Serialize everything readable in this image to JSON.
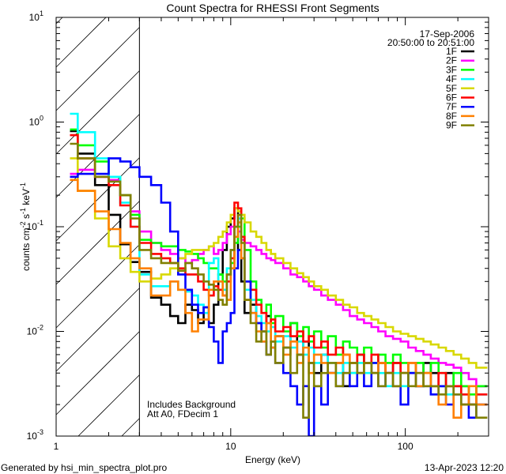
{
  "footer": {
    "generated_by": "Generated by hsi_min_spectra_plot.pro",
    "timestamp": "13-Apr-2023 12:20"
  },
  "chart_data": {
    "type": "line",
    "title": "Count Spectra for RHESSI Front Segments",
    "xlabel": "Energy (keV)",
    "ylabel_parts": [
      {
        "text": "counts cm",
        "sup": "-2"
      },
      {
        "text": " s",
        "sup": "-1"
      },
      {
        "text": " keV",
        "sup": "-1"
      }
    ],
    "xscale": "log",
    "yscale": "log",
    "xlim": [
      1,
      300
    ],
    "ylim": [
      0.001,
      10
    ],
    "x_tick_labels": [
      {
        "value": 1,
        "label": "1"
      },
      {
        "value": 10,
        "label": "10"
      },
      {
        "value": 100,
        "label": "100"
      }
    ],
    "y_tick_labels": [
      {
        "value": 0.001,
        "base": "10",
        "exp": "-3"
      },
      {
        "value": 0.01,
        "base": "10",
        "exp": "-2"
      },
      {
        "value": 0.1,
        "base": "10",
        "exp": "-1"
      },
      {
        "value": 1,
        "base": "10",
        "exp": "0"
      },
      {
        "value": 10,
        "base": "10",
        "exp": "1"
      }
    ],
    "grid": false,
    "shaded_region_kev": [
      1,
      3
    ],
    "date": "17-Sep-2006",
    "time_range": "20:50:00 to 20:51:00",
    "annotations": [
      "Includes Background",
      "Att A0, FDecim 1"
    ],
    "legend_position": "top-right",
    "bin_lower_edges_kev": [
      1.2,
      1.33,
      1.67,
      2,
      2.33,
      2.67,
      3,
      3.5,
      4,
      4.5,
      5,
      5.5,
      6,
      6.5,
      7,
      7.5,
      8,
      8.5,
      9,
      9.5,
      10,
      10.5,
      11,
      11.5,
      12,
      13,
      14,
      15,
      16,
      17,
      18,
      20,
      22,
      24,
      26,
      28,
      30,
      33,
      36,
      40,
      44,
      48,
      53,
      58,
      64,
      70,
      77,
      85,
      94,
      104,
      115,
      127,
      140,
      155,
      171,
      189,
      209,
      231,
      255
    ],
    "bin_upper_edge_kev": 295,
    "series": [
      {
        "name": "1F",
        "color": "#000000",
        "values": [
          0.82,
          0.5,
          0.25,
          0.13,
          0.068,
          0.046,
          0.037,
          0.021,
          0.018,
          0.014,
          0.012,
          0.018,
          0.016,
          0.012,
          0.017,
          0.012,
          0.018,
          0.035,
          0.06,
          0.1,
          0.12,
          0.15,
          0.06,
          0.03,
          0.015,
          0.018,
          0.012,
          0.01,
          0.014,
          0.008,
          0.009,
          0.007,
          0.012,
          0.006,
          0.008,
          0.005,
          0.004,
          0.006,
          0.004,
          0.005,
          0.003,
          0.004,
          0.006,
          0.005,
          0.004,
          0.005,
          0.004,
          0.005,
          0.004,
          0.004,
          0.003,
          0.005,
          0.004,
          0.003,
          0.004,
          0.003,
          0.003,
          0.002,
          0.003
        ]
      },
      {
        "name": "2F",
        "color": "#ff00ff",
        "values": [
          0.32,
          0.35,
          0.3,
          0.28,
          0.2,
          0.14,
          0.09,
          0.07,
          0.06,
          0.055,
          0.05,
          0.045,
          0.048,
          0.055,
          0.06,
          0.065,
          0.055,
          0.06,
          0.07,
          0.085,
          0.1,
          0.1,
          0.09,
          0.075,
          0.07,
          0.065,
          0.06,
          0.055,
          0.05,
          0.048,
          0.045,
          0.04,
          0.035,
          0.033,
          0.03,
          0.027,
          0.025,
          0.022,
          0.02,
          0.018,
          0.016,
          0.014,
          0.013,
          0.012,
          0.011,
          0.01,
          0.009,
          0.0085,
          0.008,
          0.007,
          0.0065,
          0.006,
          0.0055,
          0.005,
          0.0048,
          0.0045,
          0.004,
          0.0035,
          0.003
        ]
      },
      {
        "name": "3F",
        "color": "#00ff00",
        "values": [
          0.85,
          0.6,
          0.42,
          0.3,
          0.2,
          0.13,
          0.075,
          0.07,
          0.065,
          0.065,
          0.06,
          0.058,
          0.055,
          0.05,
          0.045,
          0.04,
          0.04,
          0.035,
          0.03,
          0.035,
          0.045,
          0.07,
          0.1,
          0.12,
          0.06,
          0.03,
          0.02,
          0.015,
          0.018,
          0.012,
          0.014,
          0.01,
          0.012,
          0.009,
          0.011,
          0.008,
          0.01,
          0.007,
          0.009,
          0.006,
          0.008,
          0.007,
          0.006,
          0.007,
          0.005,
          0.006,
          0.005,
          0.006,
          0.005,
          0.004,
          0.005,
          0.004,
          0.005,
          0.004,
          0.003,
          0.004,
          0.003,
          0.0025,
          0.003
        ]
      },
      {
        "name": "4F",
        "color": "#00ffff",
        "values": [
          1.2,
          0.8,
          0.45,
          0.3,
          0.17,
          0.1,
          0.035,
          0.027,
          0.027,
          0.03,
          0.025,
          0.024,
          0.022,
          0.018,
          0.015,
          0.045,
          0.05,
          0.03,
          0.025,
          0.04,
          0.06,
          0.1,
          0.12,
          0.05,
          0.025,
          0.02,
          0.014,
          0.012,
          0.01,
          0.011,
          0.008,
          0.009,
          0.007,
          0.008,
          0.006,
          0.007,
          0.005,
          0.006,
          0.005,
          0.004,
          0.005,
          0.004,
          0.005,
          0.004,
          0.005,
          0.004,
          0.003,
          0.004,
          0.003,
          0.004,
          0.003,
          0.004,
          0.003,
          0.003,
          0.0025,
          0.003,
          0.0025,
          0.002,
          0.0025
        ]
      },
      {
        "name": "5F",
        "color": "#d8d800",
        "values": [
          0.45,
          0.22,
          0.12,
          0.065,
          0.05,
          0.037,
          0.03,
          0.032,
          0.035,
          0.04,
          0.05,
          0.055,
          0.06,
          0.06,
          0.06,
          0.065,
          0.07,
          0.08,
          0.09,
          0.11,
          0.13,
          0.15,
          0.14,
          0.13,
          0.11,
          0.09,
          0.08,
          0.07,
          0.06,
          0.055,
          0.05,
          0.045,
          0.04,
          0.036,
          0.033,
          0.03,
          0.027,
          0.025,
          0.022,
          0.02,
          0.018,
          0.017,
          0.015,
          0.014,
          0.013,
          0.012,
          0.011,
          0.01,
          0.0095,
          0.009,
          0.0085,
          0.008,
          0.0075,
          0.007,
          0.0065,
          0.006,
          0.0055,
          0.005,
          0.0045
        ]
      },
      {
        "name": "6F",
        "color": "#ff0000",
        "values": [
          0.75,
          0.45,
          0.3,
          0.25,
          0.16,
          0.1,
          0.07,
          0.055,
          0.05,
          0.045,
          0.04,
          0.035,
          0.035,
          0.03,
          0.025,
          0.022,
          0.027,
          0.025,
          0.022,
          0.03,
          0.05,
          0.17,
          0.15,
          0.08,
          0.03,
          0.025,
          0.018,
          0.015,
          0.012,
          0.013,
          0.01,
          0.011,
          0.009,
          0.01,
          0.008,
          0.009,
          0.007,
          0.008,
          0.006,
          0.007,
          0.006,
          0.005,
          0.006,
          0.005,
          0.006,
          0.005,
          0.004,
          0.005,
          0.004,
          0.005,
          0.004,
          0.004,
          0.003,
          0.004,
          0.003,
          0.003,
          0.0025,
          0.002,
          0.0025
        ]
      },
      {
        "name": "7F",
        "color": "#0000ff",
        "values": [
          0.3,
          0.32,
          0.32,
          0.45,
          0.42,
          0.37,
          0.3,
          0.25,
          0.17,
          0.09,
          0.035,
          0.025,
          0.018,
          0.015,
          0.017,
          0.011,
          0.008,
          0.005,
          0.01,
          0.012,
          0.015,
          0.04,
          0.06,
          0.05,
          0.03,
          0.015,
          0.012,
          0.008,
          0.006,
          0.007,
          0.005,
          0.004,
          0.003,
          0.002,
          0.003,
          0.0008,
          0.003,
          0.002,
          0.004,
          0.003,
          0.004,
          0.003,
          0.004,
          0.003,
          0.005,
          0.003,
          0.004,
          0.003,
          0.002,
          0.004,
          0.003,
          0.003,
          0.0025,
          0.003,
          0.002,
          0.0025,
          0.002,
          0.0015,
          0.002
        ]
      },
      {
        "name": "8F",
        "color": "#ff8000",
        "values": [
          0.28,
          0.22,
          0.14,
          0.095,
          0.07,
          0.05,
          0.04,
          0.022,
          0.022,
          0.03,
          0.025,
          0.015,
          0.01,
          0.013,
          0.013,
          0.025,
          0.03,
          0.03,
          0.022,
          0.02,
          0.04,
          0.08,
          0.11,
          0.05,
          0.02,
          0.015,
          0.01,
          0.008,
          0.012,
          0.007,
          0.009,
          0.006,
          0.008,
          0.005,
          0.007,
          0.004,
          0.006,
          0.005,
          0.004,
          0.005,
          0.006,
          0.005,
          0.004,
          0.005,
          0.004,
          0.005,
          0.004,
          0.003,
          0.004,
          0.005,
          0.003,
          0.004,
          0.003,
          0.002,
          0.003,
          0.0015,
          0.002,
          0.003,
          0.002
        ]
      },
      {
        "name": "9F",
        "color": "#808000",
        "values": [
          0.62,
          0.45,
          0.3,
          0.27,
          0.2,
          0.12,
          0.06,
          0.05,
          0.045,
          0.045,
          0.038,
          0.045,
          0.04,
          0.035,
          0.03,
          0.028,
          0.025,
          0.02,
          0.018,
          0.035,
          0.06,
          0.1,
          0.13,
          0.07,
          0.02,
          0.012,
          0.008,
          0.01,
          0.006,
          0.008,
          0.005,
          0.007,
          0.004,
          0.006,
          0.0015,
          0.005,
          0.003,
          0.004,
          0.005,
          0.003,
          0.004,
          0.005,
          0.004,
          0.005,
          0.004,
          0.003,
          0.004,
          0.003,
          0.004,
          0.003,
          0.004,
          0.003,
          0.003,
          0.0025,
          0.003,
          0.0025,
          0.002,
          0.002,
          0.0015
        ]
      }
    ]
  }
}
